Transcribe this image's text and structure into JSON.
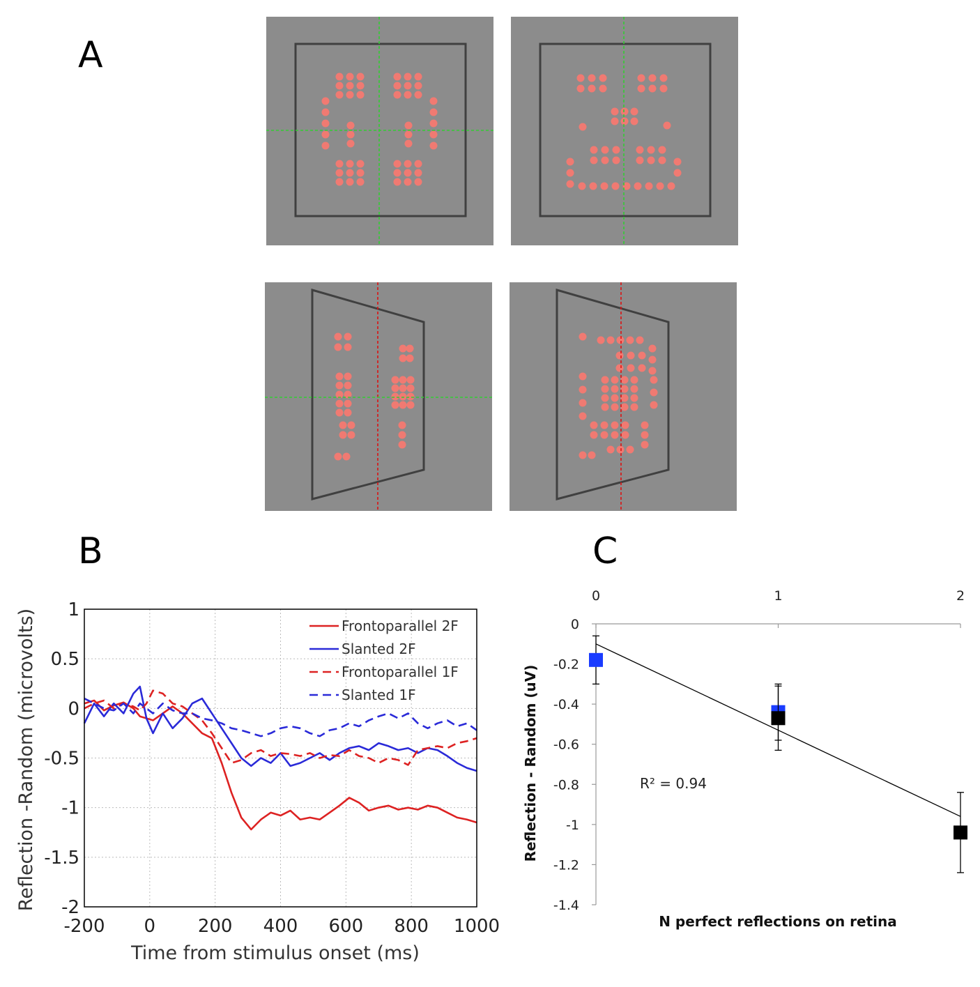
{
  "panels": {
    "a_label": "A",
    "b_label": "B",
    "c_label": "C"
  },
  "colors": {
    "stim_background": "#8c8c8c",
    "stim_frame": "#404040",
    "stim_dots": "#f07a72",
    "guide_green": "#33cc33",
    "guide_red": "#dd1111",
    "red": "#dd2222",
    "blue": "#2a2ad8",
    "square_blue": "#1a3cff",
    "square_black": "#000000"
  },
  "chart_data": [
    {
      "id": "B",
      "type": "line",
      "xlabel": "Time from stimulus onset (ms)",
      "ylabel": "Reflection -Random (microvolts)",
      "xlim": [
        -200,
        1000
      ],
      "ylim": [
        -2,
        1
      ],
      "xticks": [
        "-200",
        "0",
        "200",
        "400",
        "600",
        "800",
        "1000"
      ],
      "yticks": [
        "-2",
        "-1.5",
        "-1",
        "-0.5",
        "0",
        "0.5",
        "1"
      ],
      "grid": true,
      "legend_position": "top-right",
      "x": [
        -200,
        -170,
        -140,
        -110,
        -80,
        -50,
        -30,
        -10,
        10,
        40,
        70,
        100,
        130,
        160,
        190,
        220,
        250,
        280,
        310,
        340,
        370,
        400,
        430,
        460,
        490,
        520,
        550,
        580,
        610,
        640,
        670,
        700,
        730,
        760,
        790,
        820,
        850,
        880,
        910,
        940,
        970,
        1000
      ],
      "series": [
        {
          "name": "Frontoparallel 2F",
          "color": "#dd2222",
          "style": "solid",
          "values": [
            0.05,
            0.08,
            -0.02,
            0.03,
            0.06,
            0.0,
            -0.08,
            -0.1,
            -0.12,
            -0.05,
            0.02,
            -0.05,
            -0.15,
            -0.25,
            -0.3,
            -0.55,
            -0.85,
            -1.1,
            -1.22,
            -1.12,
            -1.05,
            -1.08,
            -1.03,
            -1.12,
            -1.1,
            -1.12,
            -1.05,
            -0.98,
            -0.9,
            -0.95,
            -1.03,
            -1.0,
            -0.98,
            -1.02,
            -1.0,
            -1.02,
            -0.98,
            -1.0,
            -1.05,
            -1.1,
            -1.12,
            -1.15
          ]
        },
        {
          "name": "Slanted 2F",
          "color": "#2a2ad8",
          "style": "solid",
          "values": [
            -0.15,
            0.05,
            -0.08,
            0.05,
            -0.05,
            0.15,
            0.22,
            -0.1,
            -0.25,
            -0.05,
            -0.2,
            -0.1,
            0.05,
            0.1,
            -0.05,
            -0.2,
            -0.35,
            -0.5,
            -0.58,
            -0.5,
            -0.55,
            -0.45,
            -0.58,
            -0.55,
            -0.5,
            -0.45,
            -0.52,
            -0.45,
            -0.4,
            -0.38,
            -0.42,
            -0.35,
            -0.38,
            -0.42,
            -0.4,
            -0.45,
            -0.4,
            -0.42,
            -0.48,
            -0.55,
            -0.6,
            -0.63
          ]
        },
        {
          "name": "Frontoparallel 1F",
          "color": "#dd2222",
          "style": "dashed",
          "values": [
            0.0,
            0.05,
            0.08,
            0.0,
            0.05,
            0.02,
            -0.02,
            0.05,
            0.18,
            0.15,
            0.05,
            0.02,
            -0.05,
            -0.12,
            -0.25,
            -0.4,
            -0.55,
            -0.52,
            -0.45,
            -0.42,
            -0.48,
            -0.45,
            -0.46,
            -0.48,
            -0.45,
            -0.5,
            -0.47,
            -0.48,
            -0.42,
            -0.48,
            -0.5,
            -0.55,
            -0.5,
            -0.52,
            -0.57,
            -0.42,
            -0.4,
            -0.38,
            -0.4,
            -0.35,
            -0.33,
            -0.3
          ]
        },
        {
          "name": "Slanted 1F",
          "color": "#2a2ad8",
          "style": "dashed",
          "values": [
            0.1,
            0.05,
            0.0,
            -0.02,
            0.05,
            -0.05,
            0.05,
            0.0,
            -0.05,
            0.05,
            -0.02,
            -0.05,
            -0.05,
            -0.1,
            -0.12,
            -0.15,
            -0.2,
            -0.22,
            -0.25,
            -0.28,
            -0.25,
            -0.2,
            -0.18,
            -0.2,
            -0.25,
            -0.28,
            -0.22,
            -0.2,
            -0.15,
            -0.18,
            -0.12,
            -0.08,
            -0.05,
            -0.1,
            -0.05,
            -0.15,
            -0.2,
            -0.15,
            -0.12,
            -0.18,
            -0.15,
            -0.22
          ]
        }
      ]
    },
    {
      "id": "C",
      "type": "scatter",
      "xlabel": "N perfect reflections on retina",
      "ylabel": "Reflection - Random (uV)",
      "xlim": [
        0,
        2
      ],
      "ylim": [
        -1.4,
        0
      ],
      "xticks": [
        "0",
        "1",
        "2"
      ],
      "yticks": [
        "0",
        "-0.2",
        "-0.4",
        "-0.6",
        "-0.8",
        "-1",
        "-1.2",
        "-1.4"
      ],
      "x_axis_position": "top",
      "points": [
        {
          "x": 0,
          "y": -0.18,
          "err": 0.12,
          "color": "#1a3cff"
        },
        {
          "x": 1,
          "y": -0.44,
          "err": 0.14,
          "color": "#1a3cff"
        },
        {
          "x": 1,
          "y": -0.47,
          "err": 0.16,
          "color": "#000000"
        },
        {
          "x": 2,
          "y": -1.04,
          "err": 0.2,
          "color": "#000000"
        }
      ],
      "fit_line": {
        "x": [
          0,
          2
        ],
        "y": [
          -0.1,
          -0.96
        ]
      },
      "annotation": "R² = 0.94"
    }
  ]
}
